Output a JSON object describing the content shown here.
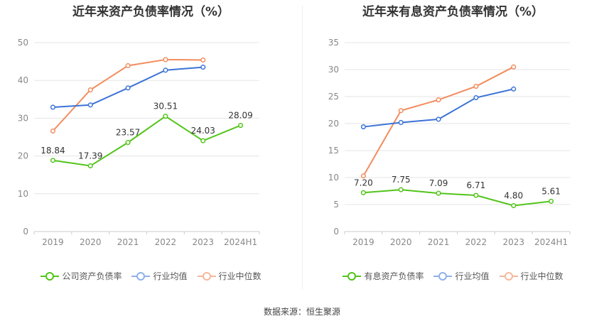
{
  "charts": [
    {
      "title": "近年来资产负债率情况（%）",
      "legend": [
        "公司资产负债率",
        "行业均值",
        "行业中位数"
      ]
    },
    {
      "title": "近年来有息资产负债率情况（%）",
      "legend": [
        "有息资产负债率",
        "行业均值",
        "行业中位数"
      ]
    }
  ],
  "footer": {
    "source": "数据来源：恒生聚源"
  },
  "chart_data": [
    {
      "type": "line",
      "title": "近年来资产负债率情况（%）",
      "categories": [
        "2019",
        "2020",
        "2021",
        "2022",
        "2023",
        "2024H1"
      ],
      "ylim": [
        0,
        50
      ],
      "yticks": [
        0,
        10,
        20,
        30,
        40,
        50
      ],
      "grid": true,
      "legend_position": "bottom",
      "series": [
        {
          "name": "公司资产负债率",
          "color": "#52c41a",
          "values": [
            18.84,
            17.39,
            23.57,
            30.51,
            24.03,
            28.09
          ],
          "labels": [
            "18.84",
            "17.39",
            "23.57",
            "30.51",
            "24.03",
            "28.09"
          ]
        },
        {
          "name": "行业均值",
          "color": "#3b73d6",
          "values": [
            32.9,
            33.5,
            38.0,
            42.7,
            43.5,
            null
          ]
        },
        {
          "name": "行业中位数",
          "color": "#f28c5e",
          "values": [
            26.6,
            37.5,
            43.9,
            45.5,
            45.4,
            null
          ]
        }
      ]
    },
    {
      "type": "line",
      "title": "近年来有息资产负债率情况（%）",
      "categories": [
        "2019",
        "2020",
        "2021",
        "2022",
        "2023",
        "2024H1"
      ],
      "ylim": [
        0,
        35
      ],
      "yticks": [
        0,
        5,
        10,
        15,
        20,
        25,
        30,
        35
      ],
      "grid": true,
      "legend_position": "bottom",
      "series": [
        {
          "name": "有息资产负债率",
          "color": "#52c41a",
          "values": [
            7.2,
            7.75,
            7.09,
            6.71,
            4.8,
            5.61
          ],
          "labels": [
            "7.20",
            "7.75",
            "7.09",
            "6.71",
            "4.80",
            "5.61"
          ]
        },
        {
          "name": "行业均值",
          "color": "#3b73d6",
          "values": [
            19.4,
            20.2,
            20.8,
            24.8,
            26.4,
            null
          ]
        },
        {
          "name": "行业中位数",
          "color": "#f28c5e",
          "values": [
            10.3,
            22.4,
            24.4,
            26.9,
            30.5,
            null
          ]
        }
      ]
    }
  ]
}
